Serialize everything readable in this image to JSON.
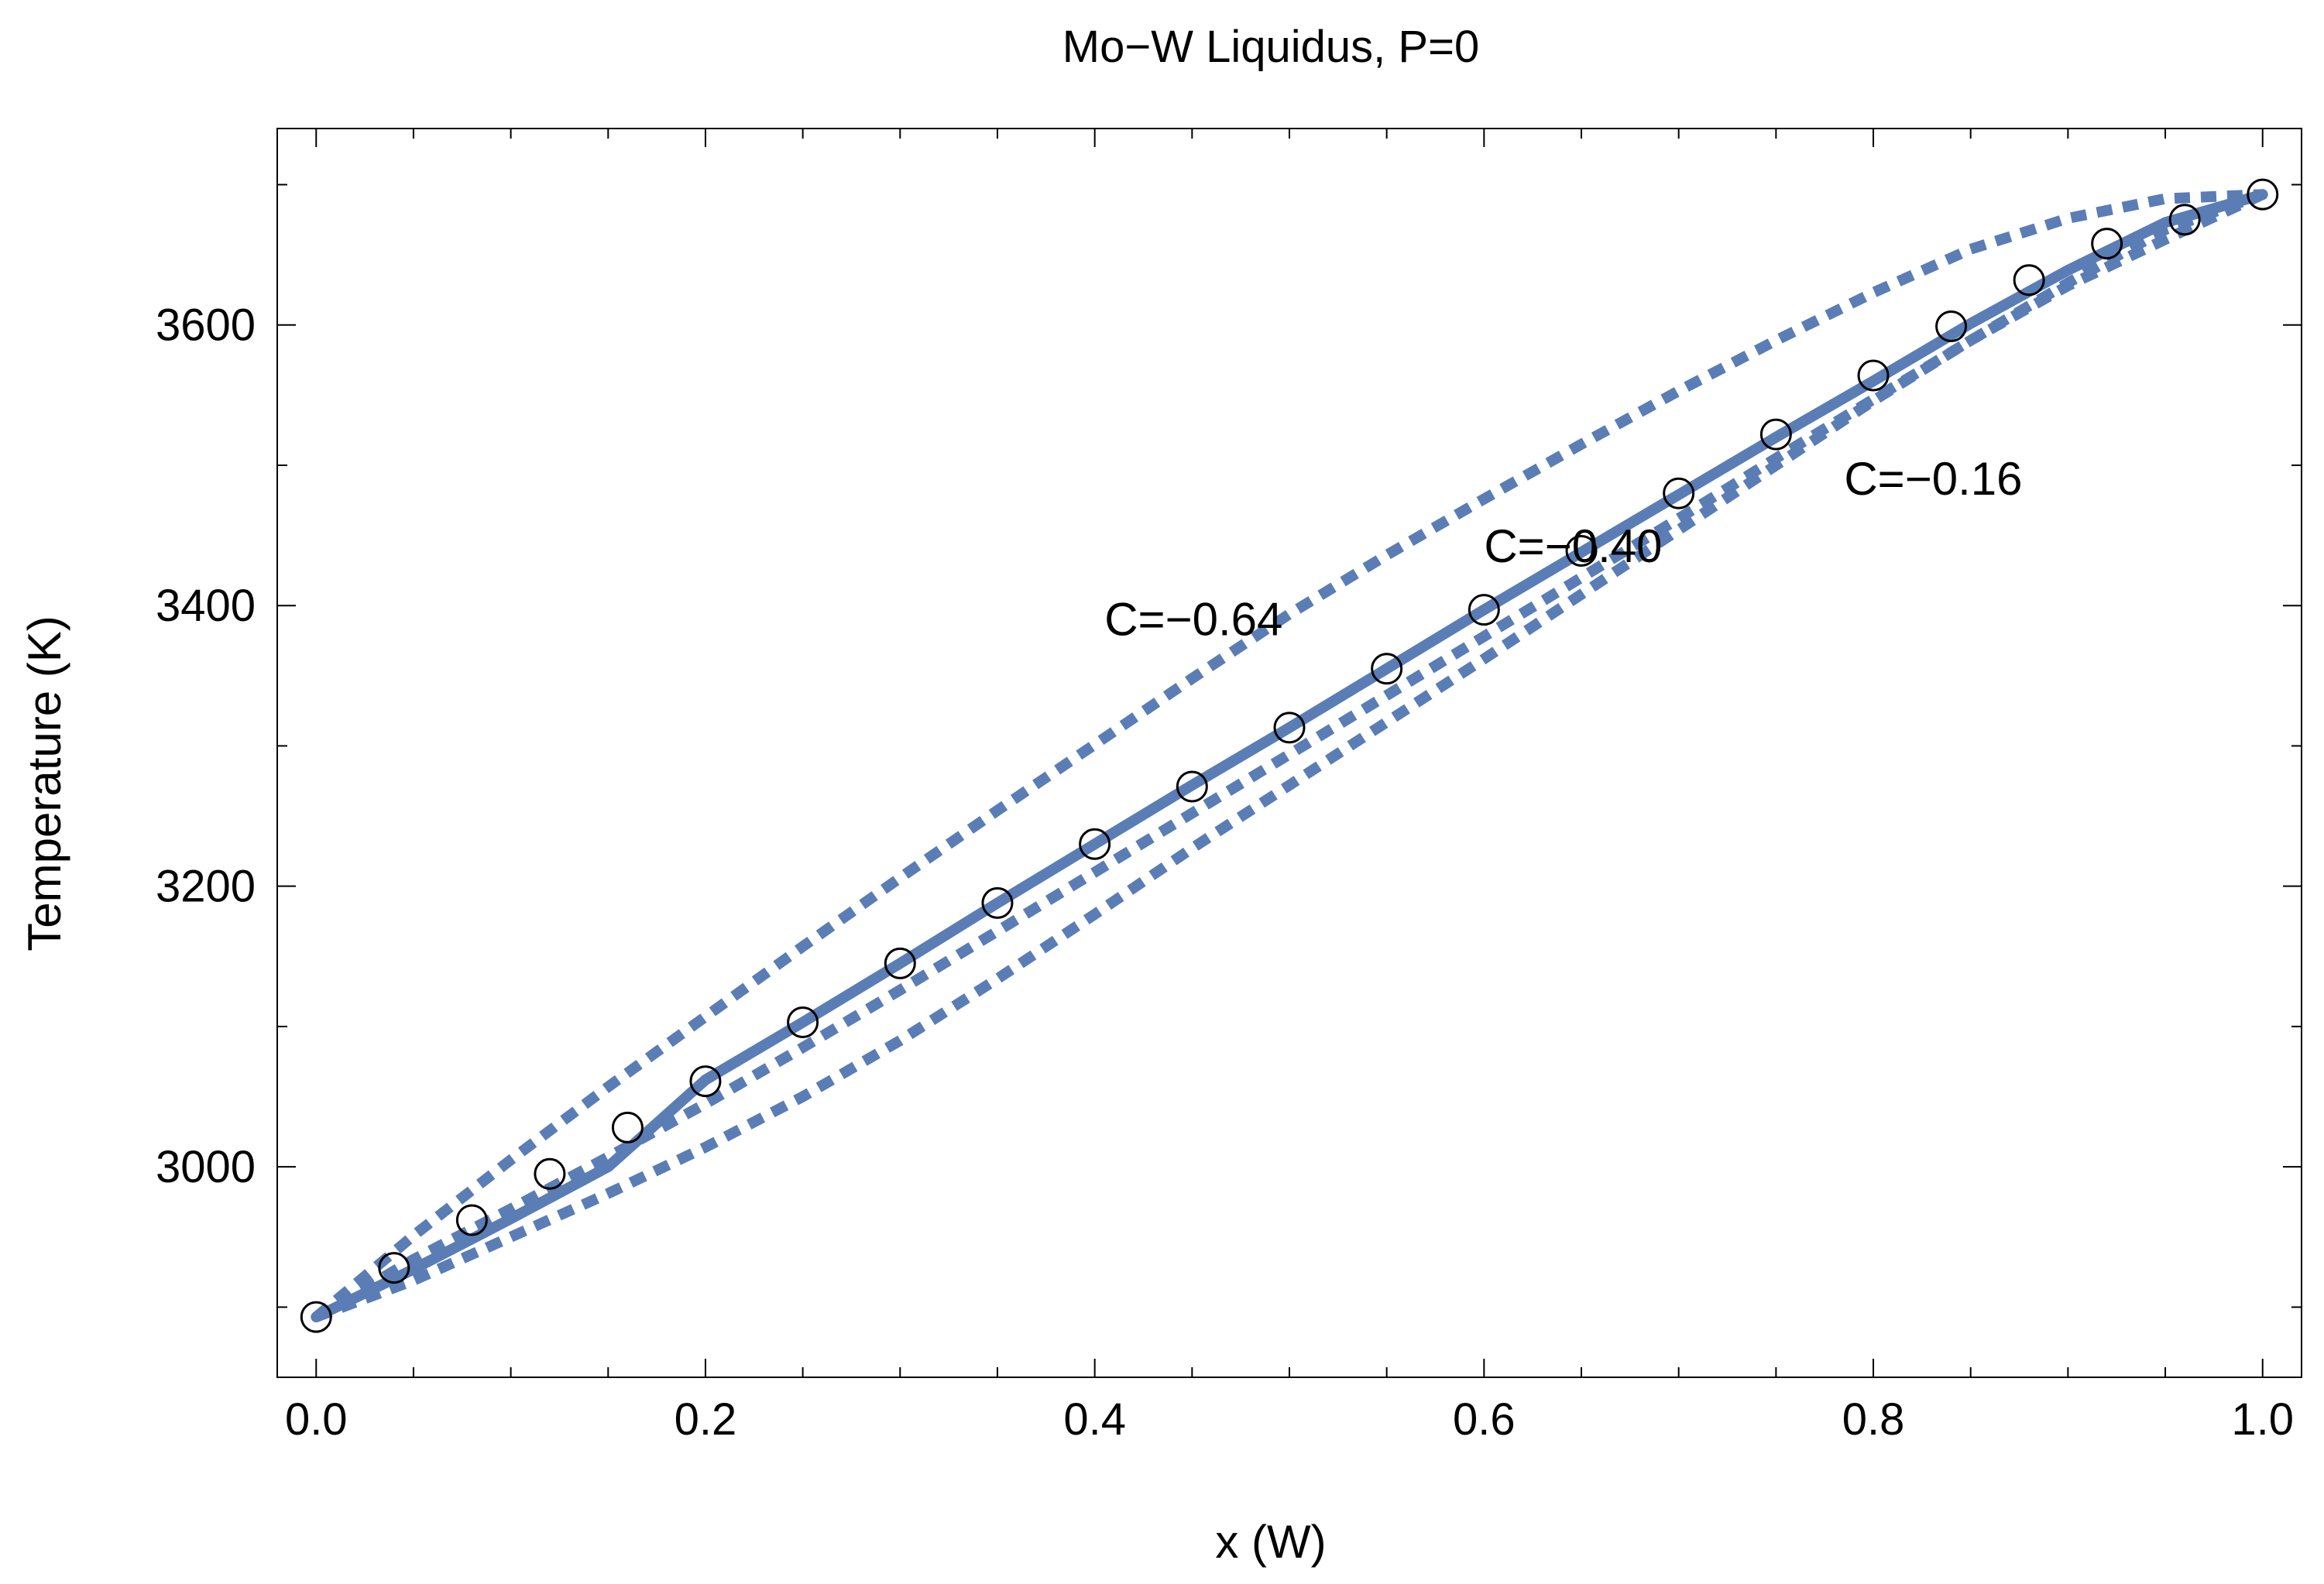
{
  "chart_data": {
    "type": "line",
    "title": "Mo−W Liquidus, P=0",
    "xlabel": "x (W)",
    "ylabel": "Temperature (K)",
    "xlim": [
      -0.02,
      1.02
    ],
    "ylim": [
      2850,
      3740
    ],
    "x_major_ticks": [
      0.0,
      0.2,
      0.4,
      0.6,
      0.8,
      1.0
    ],
    "x_tick_labels": [
      "0.0",
      "0.2",
      "0.4",
      "0.6",
      "0.8",
      "1.0"
    ],
    "x_minor_ticks": [
      0.05,
      0.1,
      0.15,
      0.25,
      0.3,
      0.35,
      0.45,
      0.5,
      0.55,
      0.65,
      0.7,
      0.75,
      0.85,
      0.9,
      0.95
    ],
    "y_major_ticks": [
      3000,
      3200,
      3400,
      3600
    ],
    "y_tick_labels": [
      "3000",
      "3200",
      "3400",
      "3600"
    ],
    "y_minor_ticks": [
      2900,
      3100,
      3300,
      3500,
      3700
    ],
    "series_color": "#5a7db5",
    "fit": {
      "name": "fit",
      "style": "solid",
      "x": [
        0.0,
        0.05,
        0.1,
        0.15,
        0.2,
        0.25,
        0.3,
        0.35,
        0.4,
        0.45,
        0.5,
        0.55,
        0.6,
        0.65,
        0.7,
        0.75,
        0.8,
        0.85,
        0.9,
        0.95,
        1.0
      ],
      "y": [
        2893,
        2927,
        2963,
        3000,
        3062,
        3103,
        3145,
        3188,
        3230,
        3272,
        3313,
        3355,
        3397,
        3438,
        3479,
        3520,
        3560,
        3601,
        3639,
        3673,
        3693
      ]
    },
    "C_curves": [
      {
        "name": "C=−0.64",
        "style": "dashed",
        "x": [
          0.0,
          0.05,
          0.1,
          0.15,
          0.2,
          0.25,
          0.3,
          0.35,
          0.4,
          0.45,
          0.5,
          0.55,
          0.6,
          0.65,
          0.7,
          0.75,
          0.8,
          0.85,
          0.9,
          0.95,
          1.0
        ],
        "y": [
          2893,
          2951,
          3005,
          3057,
          3107,
          3157,
          3206,
          3254,
          3301,
          3348,
          3394,
          3436,
          3476,
          3515,
          3553,
          3589,
          3623,
          3654,
          3676,
          3690,
          3693
        ]
      },
      {
        "name": "C=−0.40",
        "style": "dashed",
        "x": [
          0.0,
          0.05,
          0.1,
          0.15,
          0.2,
          0.25,
          0.3,
          0.35,
          0.4,
          0.45,
          0.5,
          0.55,
          0.6,
          0.65,
          0.7,
          0.75,
          0.8,
          0.85,
          0.9,
          0.95,
          1.0
        ],
        "y": [
          2893,
          2934,
          2970,
          3007,
          3045,
          3085,
          3126,
          3168,
          3210,
          3252,
          3294,
          3336,
          3378,
          3420,
          3462,
          3505,
          3547,
          3589,
          3630,
          3668,
          3693
        ]
      },
      {
        "name": "C=−0.16",
        "style": "dashed",
        "x": [
          0.0,
          0.05,
          0.1,
          0.15,
          0.2,
          0.25,
          0.3,
          0.35,
          0.4,
          0.45,
          0.5,
          0.55,
          0.6,
          0.65,
          0.7,
          0.75,
          0.8,
          0.85,
          0.9,
          0.95,
          1.0
        ],
        "y": [
          2893,
          2919,
          2950,
          2981,
          3014,
          3050,
          3090,
          3134,
          3180,
          3227,
          3272,
          3317,
          3362,
          3408,
          3454,
          3500,
          3546,
          3589,
          3628,
          3661,
          3693
        ]
      }
    ],
    "annotations": [
      {
        "text": "C=−0.64",
        "x": 0.405,
        "y": 3390
      },
      {
        "text": "C=−0.40",
        "x": 0.6,
        "y": 3442
      },
      {
        "text": "C=−0.16",
        "x": 0.785,
        "y": 3490
      }
    ],
    "data_points": {
      "name": "data",
      "marker": "open-circle",
      "x": [
        0.0,
        0.04,
        0.08,
        0.12,
        0.16,
        0.2,
        0.25,
        0.3,
        0.35,
        0.4,
        0.45,
        0.5,
        0.55,
        0.6,
        0.65,
        0.7,
        0.75,
        0.8,
        0.84,
        0.88,
        0.92,
        0.96,
        1.0
      ],
      "y": [
        2893,
        2928,
        2962,
        2995,
        3028,
        3061,
        3103,
        3145,
        3188,
        3230,
        3271,
        3313,
        3355,
        3397,
        3439,
        3480,
        3522,
        3564,
        3599,
        3632,
        3658,
        3675,
        3693
      ]
    }
  }
}
